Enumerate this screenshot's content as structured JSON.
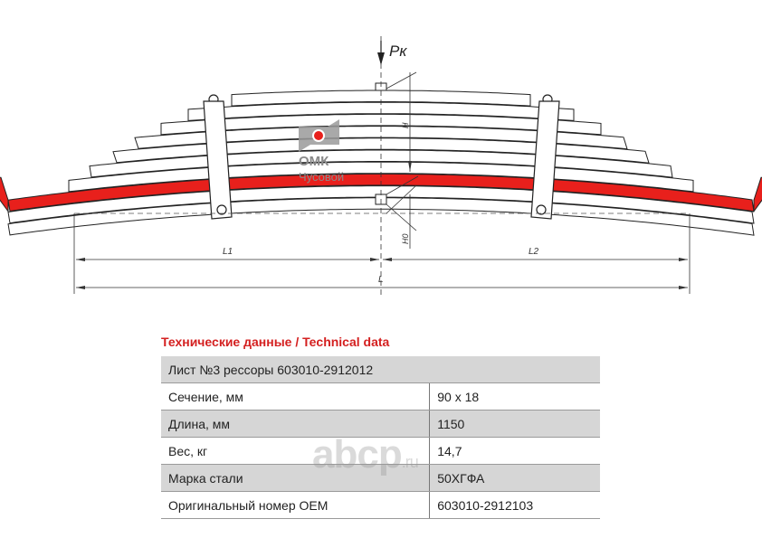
{
  "drawing": {
    "load_label": "Pк",
    "height_label": "H",
    "h0_label": "H0",
    "l1_label": "L1",
    "l2_label": "L2",
    "l_label": "L",
    "highlight_color": "#e8201c",
    "logo": {
      "brand": "ОМК",
      "city": "Чусовой",
      "color": "#e8201c"
    }
  },
  "table": {
    "title": "Технические данные / Technical data",
    "header": "Лист №3 рессоры 603010-2912012",
    "rows": [
      {
        "label": "Сечение, мм",
        "value": "90 x 18"
      },
      {
        "label": "Длина, мм",
        "value": "1150"
      },
      {
        "label": "Вес, кг",
        "value": "14,7"
      },
      {
        "label": "Марка стали",
        "value": "50ХГФА"
      },
      {
        "label": "Оригинальный номер OEM",
        "value": "603010-2912103"
      }
    ]
  },
  "watermark": {
    "text": "abcp",
    "suffix": ".ru"
  }
}
